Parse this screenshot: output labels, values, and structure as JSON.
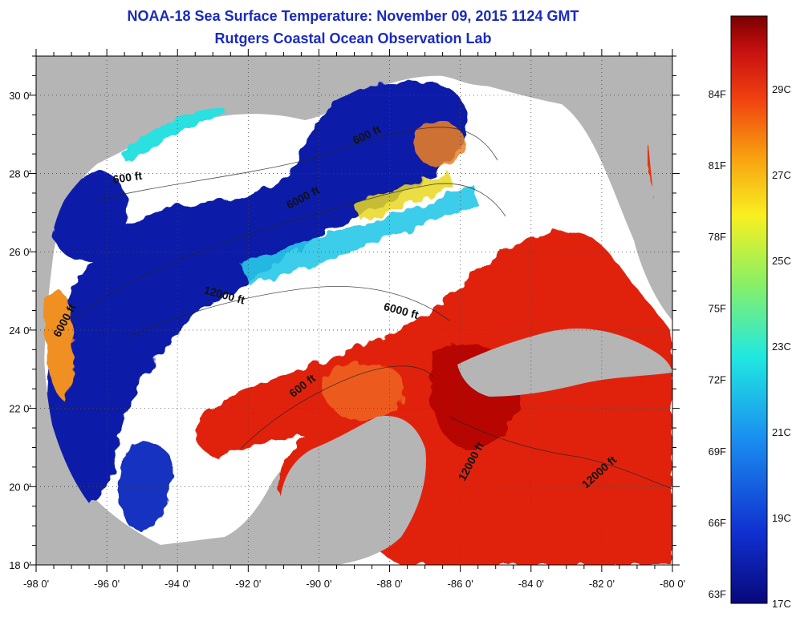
{
  "header": {
    "title": "NOAA-18 Sea Surface Temperature:  November 09, 2015 1124 GMT",
    "subtitle": "Rutgers Coastal Ocean Observation Lab"
  },
  "map": {
    "lon_range": [
      -98,
      -80
    ],
    "lat_range": [
      18,
      31
    ],
    "lon_ticks": [
      {
        "value": -98,
        "label": "-98 0'"
      },
      {
        "value": -96,
        "label": "-96 0'"
      },
      {
        "value": -94,
        "label": "-94 0'"
      },
      {
        "value": -92,
        "label": "-92 0'"
      },
      {
        "value": -90,
        "label": "-90 0'"
      },
      {
        "value": -88,
        "label": "-88 0'"
      },
      {
        "value": -86,
        "label": "-86 0'"
      },
      {
        "value": -84,
        "label": "-84 0'"
      },
      {
        "value": -82,
        "label": "-82 0'"
      },
      {
        "value": -80,
        "label": "-80 0'"
      }
    ],
    "lat_ticks": [
      {
        "value": 18,
        "label": "18 0'"
      },
      {
        "value": 20,
        "label": "20 0'"
      },
      {
        "value": 22,
        "label": "22 0'"
      },
      {
        "value": 24,
        "label": "24 0'"
      },
      {
        "value": 26,
        "label": "26 0'"
      },
      {
        "value": 28,
        "label": "28 0'"
      },
      {
        "value": 30,
        "label": "30 0'"
      }
    ],
    "contour_labels": [
      {
        "text": "600 ft",
        "lon": -88.6,
        "lat": 28.9,
        "angle": -25
      },
      {
        "text": "600 ft",
        "lon": -95.4,
        "lat": 27.8,
        "angle": -8
      },
      {
        "text": "6000 ft",
        "lon": -90.4,
        "lat": 27.3,
        "angle": -28
      },
      {
        "text": "12000 ft",
        "lon": -92.7,
        "lat": 24.8,
        "angle": 15
      },
      {
        "text": "6000 ft",
        "lon": -97.1,
        "lat": 24.2,
        "angle": -62
      },
      {
        "text": "6000 ft",
        "lon": -87.7,
        "lat": 24.4,
        "angle": 15
      },
      {
        "text": "600 ft",
        "lon": -90.4,
        "lat": 22.5,
        "angle": -38
      },
      {
        "text": "12000 ft",
        "lon": -85.6,
        "lat": 20.6,
        "angle": -62
      },
      {
        "text": "12000 ft",
        "lon": -82.0,
        "lat": 20.3,
        "angle": -42
      }
    ],
    "colors": {
      "land": "#b5b5b5",
      "cloud": "#ffffff",
      "cold": "#0b1fa8",
      "warm": "#e02010",
      "hot": "#b00000"
    }
  },
  "colorbar": {
    "min_c": 17,
    "max_c": 30.7,
    "fahrenheit_labels": [
      "84F",
      "81F",
      "78F",
      "75F",
      "72F",
      "69F",
      "66F",
      "63F"
    ],
    "fahrenheit_values": [
      84,
      81,
      78,
      75,
      72,
      69,
      66,
      63
    ],
    "celsius_labels": [
      "29C",
      "27C",
      "25C",
      "23C",
      "21C",
      "19C",
      "17C"
    ],
    "celsius_values": [
      29,
      27,
      25,
      23,
      21,
      19,
      17
    ]
  }
}
